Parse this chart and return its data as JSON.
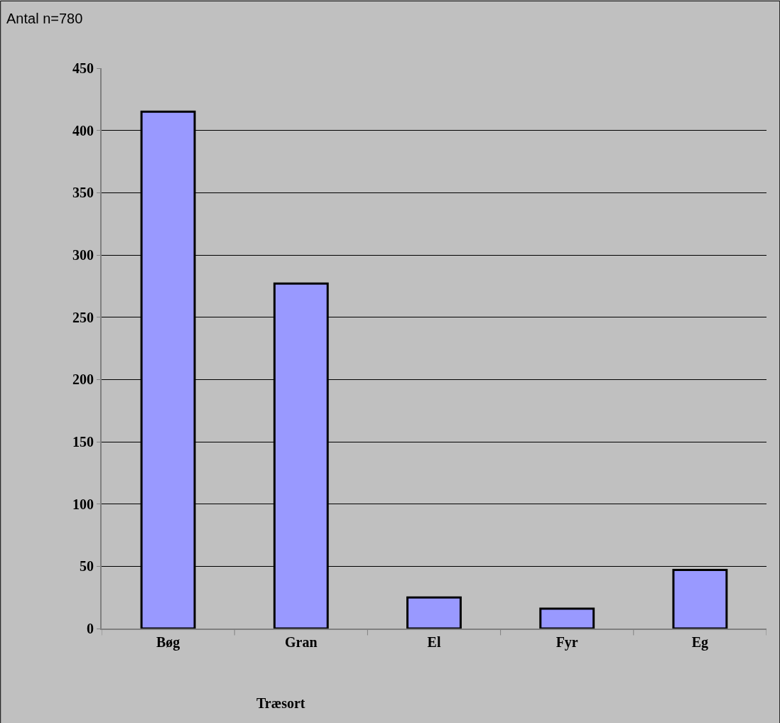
{
  "chart_data": {
    "type": "bar",
    "ylabel": "Antal n=780",
    "xlabel": "Træsort",
    "categories": [
      "Bøg",
      "Gran",
      "El",
      "Fyr",
      "Eg"
    ],
    "values": [
      415,
      277,
      25,
      16,
      47
    ],
    "color": "#9999ff",
    "ylim": [
      0,
      450
    ],
    "yticks": [
      0,
      50,
      100,
      150,
      200,
      250,
      300,
      350,
      400,
      450
    ],
    "grid": "y"
  }
}
